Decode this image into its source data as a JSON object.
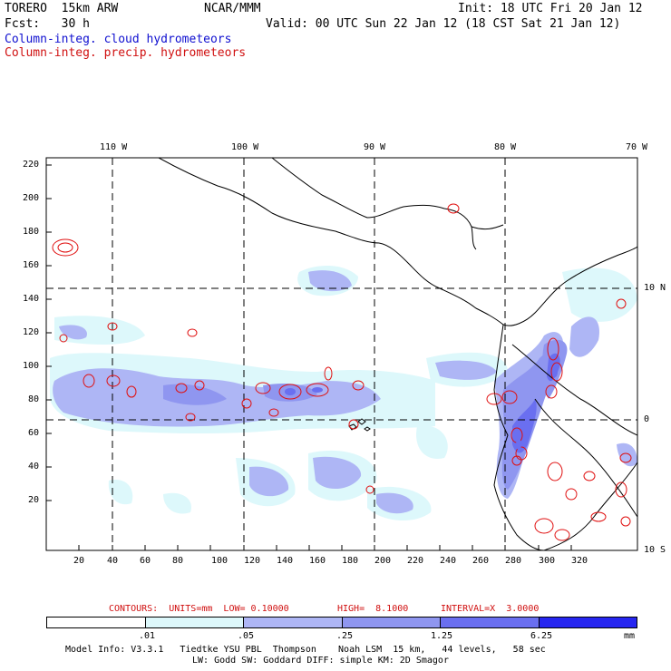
{
  "header": {
    "model": "TORERO  15km ARW",
    "org": "NCAR/MMM",
    "init": "Init: 18 UTC Fri 20 Jan 12",
    "fcst": "Fcst:   30 h",
    "valid": "Valid: 00 UTC Sun 22 Jan 12 (18 CST Sat 21 Jan 12)",
    "field1": "Column-integ. cloud hydrometeors",
    "field2": "Column-integ. precip. hydrometeors"
  },
  "colors": {
    "cloud_field": "#1010d0",
    "precip_field": "#d01010",
    "contour": "#e01010",
    "land_outline": "#000000"
  },
  "axes": {
    "lon_labels": [
      "110 W",
      "100 W",
      "90 W",
      "80 W",
      "70 W"
    ],
    "lat_labels": [
      "10 N",
      "0",
      "10 S"
    ],
    "x_ticks": [
      "20",
      "40",
      "60",
      "80",
      "100",
      "120",
      "140",
      "160",
      "180",
      "200",
      "220",
      "240",
      "260",
      "280",
      "300",
      "320"
    ],
    "y_ticks": [
      "220",
      "200",
      "180",
      "160",
      "140",
      "120",
      "100",
      "80",
      "60",
      "40",
      "20"
    ]
  },
  "contour_info": {
    "contours": "CONTOURS:  UNITS=mm  LOW= 0.10000",
    "high": "HIGH=  8.1000",
    "interval": "INTERVAL=X  3.0000"
  },
  "legend": {
    "labels": [
      ".01",
      ".05",
      ".25",
      "1.25",
      "6.25"
    ],
    "units": "mm",
    "colors": [
      "#ffffff",
      "#ddf8fb",
      "#aeb6f5",
      "#8f96f0",
      "#6a6ff0",
      "#2626f0"
    ]
  },
  "footer": {
    "line1": "Model Info: V3.3.1   Tiedtke YSU PBL  Thompson    Noah LSM  15 km,   44 levels,   58 sec",
    "line2": "LW: Godd SW: Goddard DIFF: simple KM: 2D Smagor"
  }
}
